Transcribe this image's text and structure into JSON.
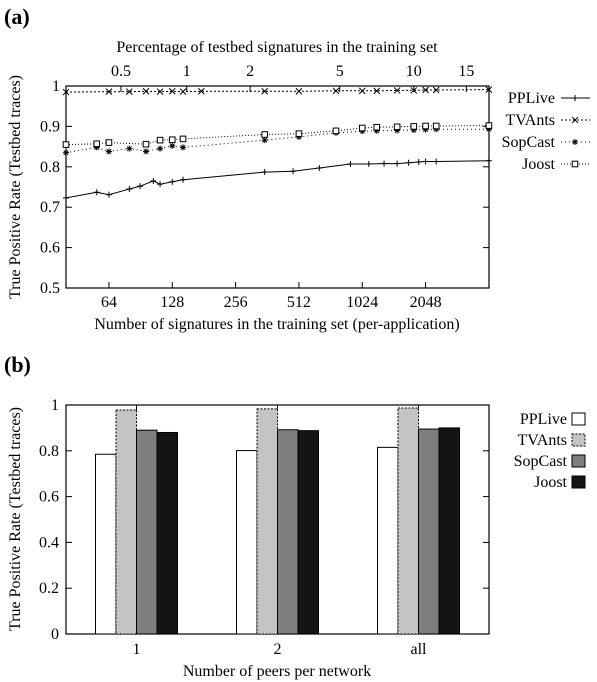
{
  "chart_data": [
    {
      "panel_label": "(a)",
      "type": "line",
      "xlabel": "Number of signatures in the training set (per-application)",
      "x2label": "Percentage of testbed signatures in the training set",
      "ylabel": "True Positive Rate (Testbed traces)",
      "xscale": "log2",
      "xlim": [
        40,
        4100
      ],
      "ylim": [
        0.5,
        1.0
      ],
      "x_ticks": [
        64,
        128,
        256,
        512,
        1024,
        2048
      ],
      "x_tick_labels": [
        "64",
        "128",
        "256",
        "512",
        "1024",
        "2048"
      ],
      "y_ticks": [
        0.5,
        0.6,
        0.7,
        0.8,
        0.9,
        1.0
      ],
      "y_tick_labels": [
        "0.5",
        "0.6",
        "0.7",
        "0.8",
        "0.9",
        "1"
      ],
      "x2_ticks": [
        {
          "x": 73,
          "label": "0.5"
        },
        {
          "x": 150,
          "label": "1"
        },
        {
          "x": 300,
          "label": "2"
        },
        {
          "x": 800,
          "label": "5"
        },
        {
          "x": 1800,
          "label": "10"
        },
        {
          "x": 3200,
          "label": "15"
        }
      ],
      "legend_position": "right",
      "series": [
        {
          "name": "PPLive",
          "marker": "plus",
          "dash": "",
          "x": [
            40,
            56,
            64,
            80,
            90,
            104,
            112,
            128,
            144,
            352,
            480,
            640,
            900,
            1100,
            1300,
            1500,
            1700,
            1900,
            2048,
            2300,
            4096
          ],
          "y": [
            0.723,
            0.737,
            0.731,
            0.745,
            0.752,
            0.765,
            0.757,
            0.763,
            0.768,
            0.787,
            0.789,
            0.797,
            0.807,
            0.807,
            0.808,
            0.808,
            0.81,
            0.812,
            0.813,
            0.813,
            0.815
          ]
        },
        {
          "name": "TVAnts",
          "marker": "x",
          "dash": "2,2",
          "x": [
            40,
            64,
            80,
            96,
            112,
            128,
            144,
            176,
            352,
            512,
            768,
            1024,
            1200,
            1500,
            1800,
            2048,
            2300,
            4096
          ],
          "y": [
            0.985,
            0.986,
            0.986,
            0.987,
            0.986,
            0.987,
            0.986,
            0.987,
            0.987,
            0.987,
            0.988,
            0.988,
            0.988,
            0.989,
            0.989,
            0.99,
            0.99,
            0.991
          ]
        },
        {
          "name": "SopCast",
          "marker": "star",
          "dash": "1,3",
          "x": [
            40,
            56,
            64,
            80,
            96,
            112,
            128,
            144,
            352,
            512,
            768,
            1024,
            1200,
            1500,
            1800,
            2048,
            2300,
            4096
          ],
          "y": [
            0.835,
            0.848,
            0.838,
            0.845,
            0.838,
            0.845,
            0.852,
            0.848,
            0.866,
            0.874,
            0.884,
            0.888,
            0.889,
            0.89,
            0.891,
            0.892,
            0.893,
            0.893
          ]
        },
        {
          "name": "Joost",
          "marker": "square",
          "dash": "1,2",
          "x": [
            40,
            56,
            64,
            96,
            112,
            128,
            144,
            352,
            512,
            768,
            1024,
            1200,
            1500,
            1800,
            2048,
            2300,
            4096
          ],
          "y": [
            0.855,
            0.857,
            0.86,
            0.856,
            0.866,
            0.867,
            0.869,
            0.88,
            0.882,
            0.889,
            0.896,
            0.898,
            0.899,
            0.9,
            0.901,
            0.901,
            0.902
          ]
        }
      ]
    },
    {
      "panel_label": "(b)",
      "type": "bar",
      "xlabel": "Number of peers per network",
      "ylabel": "True Positive Rate (Testbed traces)",
      "categories": [
        "1",
        "2",
        "all"
      ],
      "ylim": [
        0,
        1.0
      ],
      "y_ticks": [
        0,
        0.2,
        0.4,
        0.6,
        0.8,
        1.0
      ],
      "y_tick_labels": [
        "0",
        "0.2",
        "0.4",
        "0.6",
        "0.8",
        "1"
      ],
      "legend_position": "right",
      "series": [
        {
          "name": "PPLive",
          "color": "#ffffff",
          "values": [
            0.785,
            0.801,
            0.815
          ]
        },
        {
          "name": "TVAnts",
          "color": "#c4c4c4",
          "values": [
            0.978,
            0.983,
            0.987
          ]
        },
        {
          "name": "SopCast",
          "color": "#7e7e7e",
          "values": [
            0.89,
            0.892,
            0.895
          ]
        },
        {
          "name": "Joost",
          "color": "#141414",
          "values": [
            0.88,
            0.888,
            0.9
          ]
        }
      ]
    }
  ]
}
